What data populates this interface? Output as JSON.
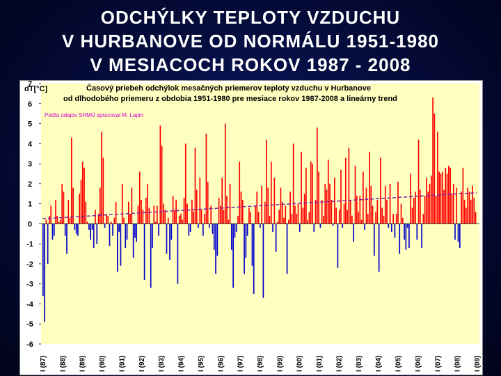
{
  "slide": {
    "title_lines": [
      "ODCHÝLKY TEPLOTY VZDUCHU",
      "V HURBANOVE OD NORMÁLU 1951-1980",
      "V MESIACOCH ROKOV 1987 - 2008"
    ]
  },
  "colors": {
    "background": "#040b38",
    "title_text": "#ffffff",
    "plot_area": "#ffffc0",
    "positive_bar": "#ff0000",
    "negative_bar": "#0000cc",
    "trend_line": "#7a1fa2",
    "source_text": "#cc00cc"
  },
  "chart_data": {
    "type": "bar",
    "title": "Časový priebeh odchýlok mesačných priemerov teploty vzduchu v Hurbanove",
    "subtitle": "od dlhodobého priemeru z obdobia 1951-1980 pre mesiace rokov 1987-2008 a lineárny trend",
    "ylabel": "dT[°C]",
    "source_note": "Podľa údajov SHMÚ spracoval M. Lapin",
    "ylim": [
      -6,
      7
    ],
    "yticks": [
      "7",
      "6",
      "5",
      "4",
      "3",
      "2",
      "1",
      "0",
      "-1",
      "-2",
      "-3",
      "-4",
      "-5",
      "-6"
    ],
    "xlabels": [
      "I (87)",
      "I (88)",
      "I (89)",
      "I (90)",
      "I (91)",
      "I (92)",
      "I (93)",
      "I (94)",
      "I (95)",
      "I (96)",
      "I (97)",
      "I (98)",
      "I (99)",
      "I (00)",
      "I (01)",
      "I (02)",
      "I (03)",
      "I (04)",
      "I (05)",
      "I (06)",
      "I (07)",
      "I (08)",
      "I (09)"
    ],
    "grid": false,
    "years": [
      {
        "year": "1987",
        "values": [
          -3.6,
          -4.9,
          0.2,
          -2.0,
          0.4,
          0.9,
          -0.8,
          -0.6,
          1.2,
          0.4,
          0.1,
          0.2
        ]
      },
      {
        "year": "1988",
        "values": [
          2.0,
          1.6,
          -0.6,
          -1.5,
          1.2,
          0.3,
          4.3,
          1.8,
          -0.3,
          -0.5,
          -0.6,
          1.5
        ]
      },
      {
        "year": "1989",
        "values": [
          2.2,
          3.1,
          2.8,
          1.1,
          0.1,
          -0.3,
          -0.8,
          -0.3,
          -1.2,
          0.7,
          -1.0,
          0.5
        ]
      },
      {
        "year": "1990",
        "values": [
          1.8,
          4.6,
          3.3,
          -0.2,
          0.5,
          0.4,
          -1.1,
          0.1,
          -0.6,
          0.3,
          1.1,
          -2.4
        ]
      },
      {
        "year": "1991",
        "values": [
          -0.4,
          -2.1,
          2.0,
          0.3,
          -1.2,
          -0.8,
          1.1,
          0.5,
          1.8,
          -1.7,
          -0.7,
          -0.9
        ]
      },
      {
        "year": "1992",
        "values": [
          0.9,
          2.6,
          1.2,
          0.7,
          -2.8,
          1.3,
          2.0,
          0.8,
          -3.2,
          -1.2,
          0.9,
          0.1
        ]
      },
      {
        "year": "1993",
        "values": [
          0.9,
          -0.6,
          4.9,
          3.9,
          1.0,
          0.7,
          -1.5,
          0.3,
          -1.8,
          -0.8,
          1.4,
          0.7
        ]
      },
      {
        "year": "1994",
        "values": [
          1.2,
          -3.0,
          0.4,
          0.5,
          0.2,
          1.3,
          4.0,
          1.0,
          -0.6,
          -0.4,
          1.2,
          0.6
        ]
      },
      {
        "year": "1995",
        "values": [
          3.8,
          1.7,
          -0.2,
          2.3,
          0.7,
          -0.6,
          0.5,
          4.5,
          2.1,
          -0.2,
          0.9,
          -0.5
        ]
      },
      {
        "year": "1996",
        "values": [
          -1.3,
          -2.5,
          -1.6,
          1.3,
          0.9,
          2.3,
          0.7,
          5.0,
          1.4,
          0.2,
          2.0,
          -1.3
        ]
      },
      {
        "year": "1997",
        "values": [
          -3.2,
          -0.7,
          -0.4,
          0.4,
          3.1,
          1.6,
          1.2,
          -2.5,
          -1.7,
          -0.6,
          0.8,
          0.6
        ]
      },
      {
        "year": "1998",
        "values": [
          -2.1,
          -3.5,
          0.9,
          1.6,
          0.6,
          -0.2,
          1.9,
          -3.7,
          1.1,
          4.2,
          1.8,
          0.4
        ]
      },
      {
        "year": "1999",
        "values": [
          3.1,
          -0.4,
          2.3,
          -1.4,
          0.1,
          0.7,
          1.8,
          1.1,
          0.3,
          0.9,
          -2.5,
          0.2
        ]
      },
      {
        "year": "2000",
        "values": [
          1.6,
          0.5,
          4.0,
          0.9,
          0.5,
          1.0,
          -0.4,
          3.6,
          0.8,
          1.5,
          2.8,
          0.2
        ]
      },
      {
        "year": "2001",
        "values": [
          0.6,
          3.1,
          3.0,
          -0.4,
          1.2,
          4.8,
          2.6,
          -0.2,
          1.2,
          0.4,
          2.0,
          1.7
        ]
      },
      {
        "year": "2002",
        "values": [
          3.2,
          2.0,
          1.2,
          -0.1,
          2.3,
          0.8,
          -2.2,
          0.7,
          2.7,
          -0.2,
          1.0,
          3.3
        ]
      },
      {
        "year": "2003",
        "values": [
          0.7,
          3.8,
          1.2,
          0.4,
          -0.9,
          2.9,
          1.4,
          0.6,
          1.4,
          0.2,
          2.6,
          -0.3
        ]
      },
      {
        "year": "2004",
        "values": [
          1.8,
          0.5,
          3.6,
          1.9,
          0.9,
          -1.6,
          0.6,
          1.2,
          -2.4,
          3.3,
          0.8,
          0.4
        ]
      },
      {
        "year": "2005",
        "values": [
          1.9,
          1.2,
          -0.2,
          2.0,
          -0.4,
          0.5,
          -0.7,
          0.5,
          2.1,
          -1.5,
          1.0,
          0.3
        ]
      },
      {
        "year": "2006",
        "values": [
          -0.8,
          -1.3,
          -0.2,
          -1.2,
          2.5,
          0.8,
          1.3,
          1.6,
          -0.8,
          4.2,
          1.7,
          -1.2
        ]
      },
      {
        "year": "2007",
        "values": [
          0.5,
          1.4,
          2.3,
          1.6,
          2.0,
          2.4,
          6.3,
          5.5,
          1.4,
          4.6,
          2.6,
          2.5
        ]
      },
      {
        "year": "2008",
        "values": [
          2.6,
          1.7,
          2.8,
          2.5,
          2.9,
          2.8,
          1.5,
          2.0,
          -0.8,
          1.8,
          -0.9,
          -1.2
        ]
      },
      {
        "year": "2009",
        "values": [
          1.6,
          2.8,
          1.2,
          0.8,
          1.8,
          1.6,
          1.2,
          1.9,
          1.3,
          0.6
        ]
      }
    ],
    "trend": {
      "start": 0.25,
      "end": 1.55
    }
  }
}
